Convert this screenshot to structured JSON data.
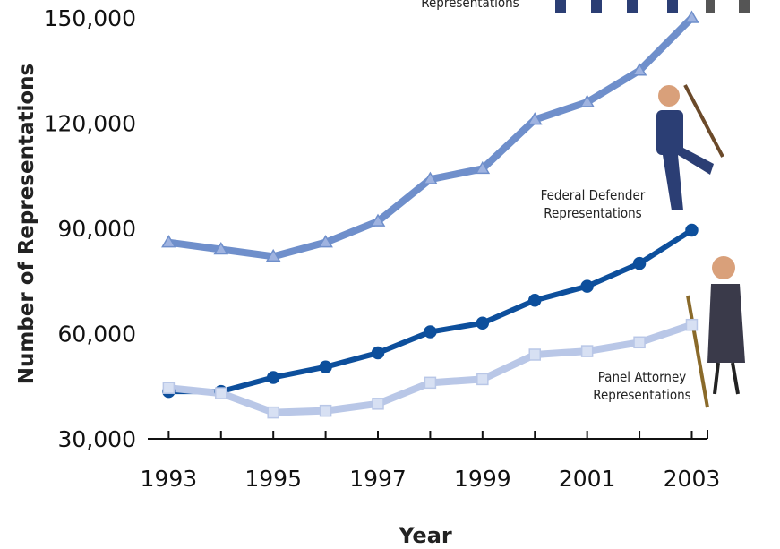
{
  "chart_data": {
    "type": "line",
    "x_label": "Year",
    "y_label": "Number of Representations",
    "x": [
      1993,
      1994,
      1995,
      1996,
      1997,
      1998,
      1999,
      2000,
      2001,
      2002,
      2003
    ],
    "series": [
      {
        "name": "Representations",
        "color": "#6f8fcb",
        "marker": "triangle",
        "values": [
          86000,
          84000,
          82000,
          86000,
          92000,
          104000,
          107000,
          121000,
          126000,
          135000,
          150000
        ]
      },
      {
        "name": "Federal Defender Representations",
        "color": "#0d4f9c",
        "marker": "circle",
        "values": [
          43500,
          43500,
          47500,
          50500,
          54500,
          60500,
          63000,
          69500,
          73500,
          80000,
          89500
        ]
      },
      {
        "name": "Panel Attorney Representations",
        "color": "#b9c7e7",
        "marker": "square",
        "values": [
          44500,
          43000,
          37500,
          38000,
          40000,
          46000,
          47000,
          54000,
          55000,
          57500,
          62500
        ]
      }
    ],
    "xlim": [
      1992.6,
      2003.3
    ],
    "xticks": [
      1993,
      1995,
      1997,
      1999,
      2001,
      2003
    ],
    "ylim": [
      30000,
      150000
    ],
    "yticks": [
      {
        "value": 30000,
        "label": "30,000"
      },
      {
        "value": 60000,
        "label": "60,000"
      },
      {
        "value": 90000,
        "label": "90,000"
      },
      {
        "value": 120000,
        "label": "120,000"
      },
      {
        "value": 150000,
        "label": "150,000"
      }
    ]
  }
}
